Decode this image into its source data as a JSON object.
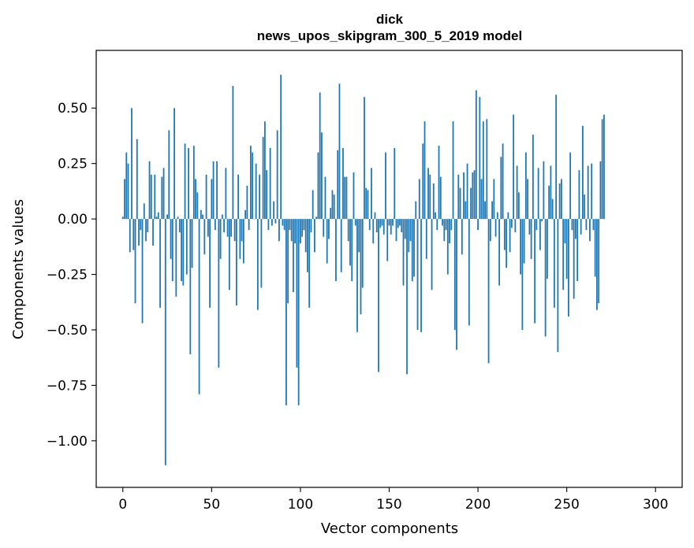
{
  "chart_data": {
    "type": "bar",
    "title": "dick",
    "subtitle": "news_upos_skipgram_300_5_2019 model",
    "xlabel": "Vector components",
    "ylabel": "Components values",
    "xlim": [
      -15,
      315
    ],
    "ylim": [
      -1.21,
      0.76
    ],
    "xticks": [
      0,
      50,
      100,
      150,
      200,
      250,
      300
    ],
    "xtick_labels": [
      "0",
      "50",
      "100",
      "150",
      "200",
      "250",
      "300"
    ],
    "yticks": [
      0.5,
      0.25,
      0.0,
      -0.25,
      -0.5,
      -0.75,
      -1.0
    ],
    "ytick_labels": [
      "0.50",
      "0.25",
      "0.00",
      "−0.25",
      "−0.50",
      "−0.75",
      "−1.00"
    ],
    "bar_color": "#1f77b4",
    "grid": false,
    "legend": false,
    "values": [
      0.01,
      0.18,
      0.3,
      0.25,
      -0.15,
      0.5,
      -0.14,
      -0.38,
      0.36,
      -0.12,
      -0.05,
      -0.47,
      0.07,
      -0.1,
      -0.06,
      0.26,
      0.2,
      -0.12,
      0.2,
      0.01,
      0.03,
      -0.4,
      0.19,
      0.23,
      -1.11,
      0.02,
      0.4,
      -0.18,
      -0.28,
      0.5,
      -0.35,
      0.01,
      -0.06,
      -0.28,
      -0.3,
      0.34,
      -0.25,
      0.32,
      -0.61,
      -0.22,
      0.33,
      0.18,
      0.12,
      -0.79,
      0.04,
      0.02,
      -0.16,
      0.2,
      -0.08,
      -0.4,
      0.18,
      0.26,
      -0.05,
      0.26,
      -0.67,
      -0.18,
      0.02,
      -0.06,
      0.23,
      -0.08,
      -0.32,
      -0.08,
      0.6,
      -0.1,
      -0.39,
      0.2,
      -0.18,
      -0.1,
      -0.2,
      0.04,
      0.15,
      -0.05,
      0.33,
      0.3,
      0.0,
      0.25,
      -0.41,
      0.2,
      -0.31,
      0.37,
      0.44,
      0.22,
      -0.05,
      0.32,
      -0.03,
      0.08,
      -0.02,
      0.4,
      -0.1,
      0.65,
      -0.03,
      -0.05,
      -0.84,
      -0.38,
      -0.05,
      -0.1,
      -0.33,
      -0.11,
      -0.67,
      -0.84,
      -0.11,
      -0.08,
      -0.05,
      -0.15,
      -0.24,
      -0.4,
      -0.06,
      0.13,
      -0.15,
      0.01,
      0.3,
      0.57,
      0.39,
      -0.08,
      0.19,
      -0.2,
      -0.09,
      0.05,
      0.13,
      0.11,
      -0.28,
      0.31,
      0.61,
      -0.24,
      0.32,
      0.19,
      0.19,
      -0.1,
      -0.21,
      -0.28,
      0.21,
      -0.03,
      -0.51,
      -0.15,
      -0.43,
      -0.31,
      0.55,
      0.14,
      0.13,
      -0.05,
      0.23,
      -0.11,
      0.03,
      -0.06,
      -0.69,
      -0.04,
      -0.03,
      -0.07,
      0.3,
      -0.19,
      -0.03,
      -0.07,
      -0.03,
      0.32,
      -0.1,
      -0.04,
      -0.03,
      -0.06,
      -0.3,
      -0.09,
      -0.7,
      -0.15,
      -0.1,
      -0.28,
      -0.26,
      0.08,
      -0.5,
      0.18,
      -0.51,
      0.34,
      0.44,
      -0.18,
      0.23,
      0.2,
      -0.32,
      0.16,
      0.03,
      -0.05,
      0.33,
      0.19,
      -0.03,
      -0.1,
      -0.05,
      -0.25,
      -0.11,
      -0.05,
      0.44,
      -0.5,
      -0.59,
      0.2,
      0.14,
      -0.16,
      0.21,
      0.08,
      0.25,
      -0.48,
      0.14,
      0.21,
      0.22,
      0.58,
      -0.05,
      0.55,
      0.18,
      0.44,
      0.08,
      0.45,
      -0.65,
      -0.1,
      0.08,
      0.18,
      -0.08,
      0.03,
      -0.3,
      0.28,
      0.34,
      -0.14,
      -0.22,
      0.03,
      -0.15,
      -0.04,
      0.47,
      -0.06,
      0.24,
      0.12,
      -0.25,
      -0.5,
      -0.2,
      0.3,
      0.18,
      -0.07,
      -0.18,
      0.38,
      -0.47,
      -0.05,
      0.23,
      -0.14,
      -0.01,
      0.26,
      -0.53,
      -0.27,
      0.15,
      0.24,
      0.09,
      -0.4,
      0.56,
      -0.6,
      0.16,
      0.18,
      -0.32,
      -0.11,
      -0.27,
      -0.44,
      0.3,
      -0.05,
      -0.36,
      -0.09,
      -0.28,
      0.22,
      -0.07,
      0.42,
      0.11,
      -0.05,
      0.24,
      -0.1,
      0.25,
      -0.05,
      -0.26,
      -0.41,
      -0.38,
      0.26,
      0.45,
      0.47
    ]
  }
}
